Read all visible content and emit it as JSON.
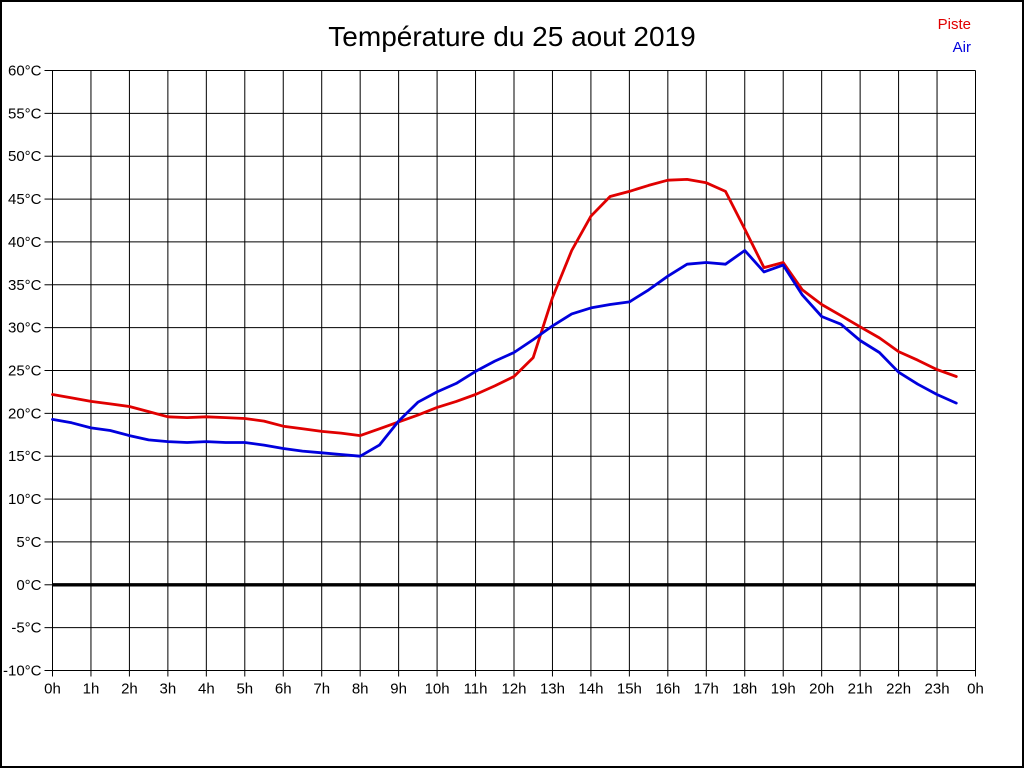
{
  "window": {
    "background": "#ffffff",
    "border_color": "#000000"
  },
  "chart_data": {
    "type": "line",
    "title": "Température du 25 aout 2019",
    "xlabel": "",
    "ylabel": "",
    "grid": true,
    "grid_color": "#000000",
    "zero_line_bold": true,
    "legend_position": "top-right",
    "xlim": [
      0,
      24
    ],
    "ylim": [
      -10,
      60
    ],
    "ytick_step": 5,
    "ytick_suffix": "°C",
    "xtick_labels": [
      "0h",
      "1h",
      "2h",
      "3h",
      "4h",
      "5h",
      "6h",
      "7h",
      "8h",
      "9h",
      "10h",
      "11h",
      "12h",
      "13h",
      "14h",
      "15h",
      "16h",
      "17h",
      "18h",
      "19h",
      "20h",
      "21h",
      "22h",
      "23h",
      "0h"
    ],
    "x": [
      0,
      0.5,
      1,
      1.5,
      2,
      2.5,
      3,
      3.5,
      4,
      4.5,
      5,
      5.5,
      6,
      6.5,
      7,
      7.5,
      8,
      8.5,
      9,
      9.5,
      10,
      10.5,
      11,
      11.5,
      12,
      12.5,
      13,
      13.5,
      14,
      14.5,
      15,
      15.5,
      16,
      16.5,
      17,
      17.5,
      18,
      18.5,
      19,
      19.5,
      20,
      20.5,
      21,
      21.5,
      22,
      22.5,
      23,
      23.5
    ],
    "series": [
      {
        "name": "Piste",
        "color": "#e00000",
        "values": [
          22.2,
          21.8,
          21.4,
          21.1,
          20.8,
          20.2,
          19.6,
          19.5,
          19.6,
          19.5,
          19.4,
          19.1,
          18.5,
          18.2,
          17.9,
          17.7,
          17.4,
          18.2,
          19.0,
          19.8,
          20.7,
          21.4,
          22.2,
          23.2,
          24.3,
          26.5,
          33.5,
          39.0,
          43.0,
          45.3,
          45.9,
          46.6,
          47.2,
          47.3,
          46.9,
          45.9,
          41.5,
          37.0,
          37.6,
          34.4,
          32.7,
          31.4,
          30.1,
          28.8,
          27.2,
          26.2,
          25.1,
          24.3
        ]
      },
      {
        "name": "Air",
        "color": "#0000dd",
        "values": [
          19.3,
          18.9,
          18.3,
          18.0,
          17.4,
          16.9,
          16.7,
          16.6,
          16.7,
          16.6,
          16.6,
          16.3,
          15.9,
          15.6,
          15.4,
          15.2,
          15.0,
          16.3,
          19.1,
          21.3,
          22.5,
          23.5,
          24.9,
          26.1,
          27.1,
          28.6,
          30.2,
          31.6,
          32.3,
          32.7,
          33.0,
          34.4,
          36.0,
          37.4,
          37.6,
          37.4,
          39.0,
          36.5,
          37.3,
          33.8,
          31.3,
          30.4,
          28.5,
          27.1,
          24.8,
          23.4,
          22.2,
          21.2
        ]
      }
    ]
  }
}
